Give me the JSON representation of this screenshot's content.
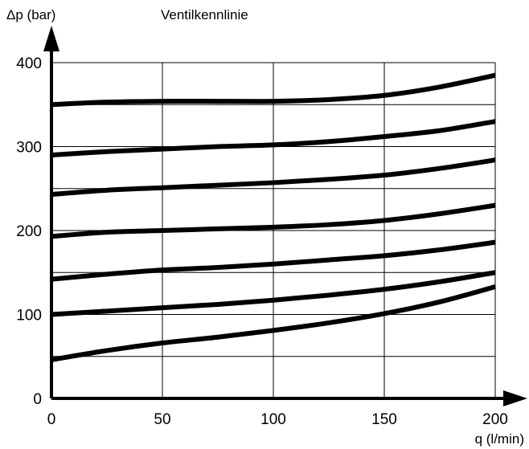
{
  "chart_data": {
    "type": "line",
    "title": "Ventilkennlinie",
    "xlabel": "q (l/min)",
    "ylabel": "Δp (bar)",
    "xlim": [
      0,
      200
    ],
    "ylim": [
      0,
      400
    ],
    "x_ticks": [
      0,
      50,
      100,
      150,
      200
    ],
    "y_ticks": [
      0,
      100,
      200,
      300,
      400
    ],
    "grid": true,
    "line_color": "#000000",
    "series": [
      {
        "x": [
          0,
          25,
          50,
          75,
          100,
          125,
          150,
          175,
          200
        ],
        "y": [
          46,
          57,
          66,
          73,
          81,
          90,
          101,
          115,
          133
        ]
      },
      {
        "x": [
          0,
          25,
          50,
          75,
          100,
          125,
          150,
          175,
          200
        ],
        "y": [
          100,
          104,
          108,
          112,
          117,
          123,
          130,
          139,
          150
        ]
      },
      {
        "x": [
          0,
          25,
          50,
          75,
          100,
          125,
          150,
          175,
          200
        ],
        "y": [
          142,
          148,
          153,
          156,
          160,
          165,
          170,
          177,
          186
        ]
      },
      {
        "x": [
          0,
          25,
          50,
          75,
          100,
          125,
          150,
          175,
          200
        ],
        "y": [
          193,
          198,
          200,
          202,
          204,
          207,
          212,
          220,
          230
        ]
      },
      {
        "x": [
          0,
          25,
          50,
          75,
          100,
          125,
          150,
          175,
          200
        ],
        "y": [
          243,
          248,
          251,
          254,
          257,
          261,
          266,
          274,
          284
        ]
      },
      {
        "x": [
          0,
          25,
          50,
          75,
          100,
          125,
          150,
          175,
          200
        ],
        "y": [
          290,
          294,
          297,
          300,
          302,
          306,
          312,
          319,
          330
        ]
      },
      {
        "x": [
          0,
          25,
          50,
          75,
          100,
          125,
          150,
          175,
          200
        ],
        "y": [
          350,
          353,
          354,
          354,
          354,
          356,
          361,
          371,
          385
        ]
      }
    ]
  }
}
